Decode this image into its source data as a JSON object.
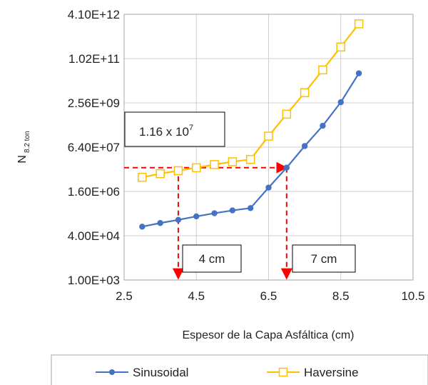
{
  "chart_data": {
    "type": "line",
    "title": "",
    "xlabel": "Espesor de la Capa Asfáltica (cm)",
    "ylabel": {
      "main": "N",
      "sub": "8.2 ton"
    },
    "x_scale": "linear",
    "y_scale": "log",
    "xlim": [
      2.5,
      10.5
    ],
    "ylim": [
      1000,
      4100000000000
    ],
    "x_ticks": [
      2.5,
      4.5,
      6.5,
      8.5,
      10.5
    ],
    "x_tick_labels": [
      "2.5",
      "4.5",
      "6.5",
      "8.5",
      "10.5"
    ],
    "y_ticks": [
      1000,
      40000,
      1600000,
      64000000,
      2560000000,
      102000000000,
      4100000000000
    ],
    "y_tick_labels": [
      "1.00E+03",
      "4.00E+04",
      "1.60E+06",
      "6.40E+07",
      "2.56E+09",
      "1.02E+11",
      "4.10E+12"
    ],
    "grid": true,
    "legend_position": "bottom",
    "series": [
      {
        "name": "Sinusoidal",
        "color": "#4472C4",
        "marker": "circle",
        "x": [
          3,
          3.5,
          4,
          4.5,
          5,
          5.5,
          6,
          6.5,
          7,
          7.5,
          8,
          8.5,
          9
        ],
        "y": [
          85000,
          115000,
          150000,
          200000,
          260000,
          330000,
          400000,
          2200000,
          11600000,
          70000000,
          380000000,
          2700000000,
          30000000000
        ]
      },
      {
        "name": "Haversine",
        "color": "#FFC000",
        "marker": "square",
        "x": [
          3,
          3.5,
          4,
          4.5,
          5,
          5.5,
          6,
          6.5,
          7,
          7.5,
          8,
          8.5,
          9
        ],
        "y": [
          5200000,
          7000000,
          9000000,
          11500000,
          15000000,
          19000000,
          23000000,
          160000000,
          1000000000,
          6000000000,
          40000000000,
          270000000000,
          1850000000000
        ]
      }
    ],
    "annotations": [
      {
        "kind": "label-box",
        "text": "1.16 x 10",
        "superscript": "7"
      },
      {
        "kind": "label-box",
        "text": "4 cm"
      },
      {
        "kind": "label-box",
        "text": "7 cm"
      }
    ],
    "reference_lines": {
      "color": "#FF0000",
      "y_value": 11600000,
      "x_from": 2.5,
      "x_to": 7,
      "drops": [
        {
          "x": 4,
          "to_y": 1000
        },
        {
          "x": 7,
          "to_y": 1000
        }
      ]
    }
  }
}
